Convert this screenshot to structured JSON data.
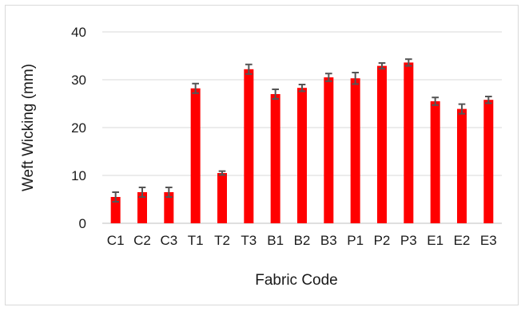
{
  "chart_data": {
    "type": "bar",
    "title": "",
    "xlabel": "Fabric Code",
    "ylabel": "Weft Wicking (mm)",
    "categories": [
      "C1",
      "C2",
      "C3",
      "T1",
      "T2",
      "T3",
      "B1",
      "B2",
      "B3",
      "P1",
      "P2",
      "P3",
      "E1",
      "E2",
      "E3"
    ],
    "values": [
      5.5,
      6.5,
      6.5,
      28.2,
      10.5,
      32.2,
      27.0,
      28.3,
      30.5,
      30.3,
      32.9,
      33.6,
      25.5,
      23.9,
      25.8
    ],
    "errors": [
      1.0,
      1.0,
      1.0,
      1.0,
      0.4,
      1.0,
      1.0,
      0.7,
      0.8,
      1.2,
      0.6,
      0.7,
      0.8,
      1.0,
      0.7
    ],
    "ylim": [
      0,
      40
    ],
    "yticks": [
      0,
      10,
      20,
      30,
      40
    ],
    "grid": true,
    "legend": "none",
    "colors": {
      "bar": "#ff0000",
      "error_bar": "#555555",
      "grid": "#d9d9d9",
      "axis": "#bfbfbf"
    }
  }
}
